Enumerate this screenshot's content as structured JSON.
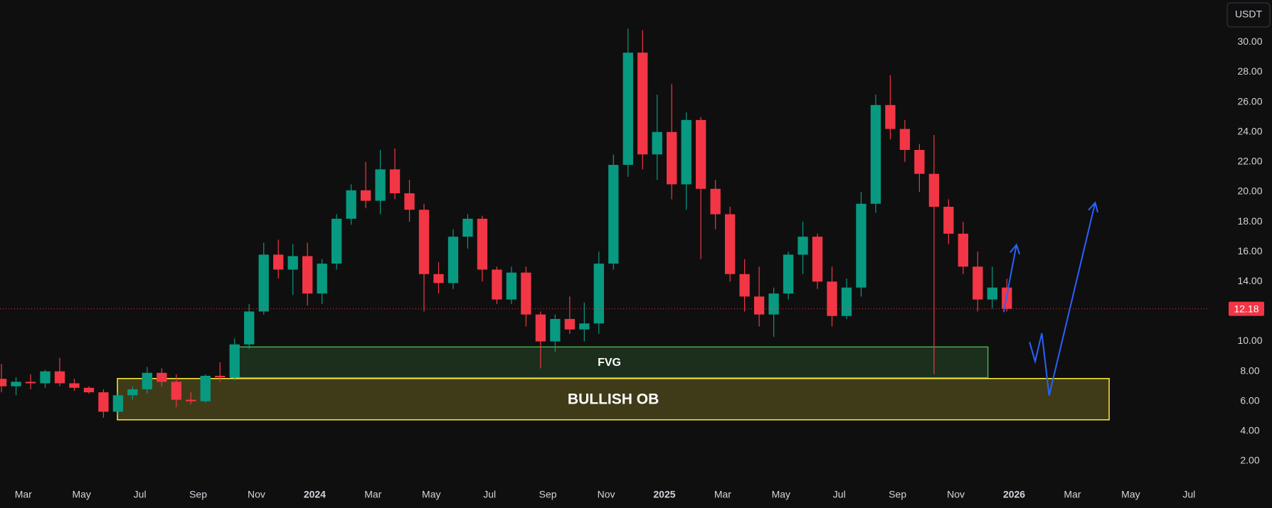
{
  "chart_data": {
    "type": "candlestick",
    "currency": "USDT",
    "up_color": "#089981",
    "down_color": "#f23645",
    "grid": false,
    "xlim": [
      1.2,
      42.7
    ],
    "ylim": [
      0.48,
      32.82
    ],
    "xticks": [
      {
        "value": 2,
        "label": "Mar"
      },
      {
        "value": 4,
        "label": "May"
      },
      {
        "value": 6,
        "label": "Jul"
      },
      {
        "value": 8,
        "label": "Sep"
      },
      {
        "value": 10,
        "label": "Nov"
      },
      {
        "value": 12,
        "label": "2024"
      },
      {
        "value": 14,
        "label": "Mar"
      },
      {
        "value": 16,
        "label": "May"
      },
      {
        "value": 18,
        "label": "Jul"
      },
      {
        "value": 20,
        "label": "Sep"
      },
      {
        "value": 22,
        "label": "Nov"
      },
      {
        "value": 24,
        "label": "2025"
      },
      {
        "value": 26,
        "label": "Mar"
      },
      {
        "value": 28,
        "label": "May"
      },
      {
        "value": 30,
        "label": "Jul"
      },
      {
        "value": 32,
        "label": "Sep"
      },
      {
        "value": 34,
        "label": "Nov"
      },
      {
        "value": 36,
        "label": "2026"
      },
      {
        "value": 38,
        "label": "Mar"
      },
      {
        "value": 40,
        "label": "May"
      },
      {
        "value": 42,
        "label": "Jul"
      }
    ],
    "yticks": [
      {
        "value": 2,
        "label": "2.00"
      },
      {
        "value": 4,
        "label": "4.00"
      },
      {
        "value": 6,
        "label": "6.00"
      },
      {
        "value": 8,
        "label": "8.00"
      },
      {
        "value": 10,
        "label": "10.00"
      },
      {
        "value": 12,
        "label": "12.00"
      },
      {
        "value": 14,
        "label": "14.00"
      },
      {
        "value": 16,
        "label": "16.00"
      },
      {
        "value": 18,
        "label": "18.00"
      },
      {
        "value": 20,
        "label": "20.00"
      },
      {
        "value": 22,
        "label": "22.00"
      },
      {
        "value": 24,
        "label": "24.00"
      },
      {
        "value": 26,
        "label": "26.00"
      },
      {
        "value": 28,
        "label": "28.00"
      },
      {
        "value": 30,
        "label": "30.00"
      }
    ],
    "x": [
      1.25,
      1.75,
      2.25,
      2.75,
      3.25,
      3.75,
      4.25,
      4.75,
      5.25,
      5.75,
      6.25,
      6.75,
      7.25,
      7.75,
      8.25,
      8.75,
      9.25,
      9.75,
      10.25,
      10.75,
      11.25,
      11.75,
      12.25,
      12.75,
      13.25,
      13.75,
      14.25,
      14.75,
      15.25,
      15.75,
      16.25,
      16.75,
      17.25,
      17.75,
      18.25,
      18.75,
      19.25,
      19.75,
      20.25,
      20.75,
      21.25,
      21.75,
      22.25,
      22.75,
      23.25,
      23.75,
      24.25,
      24.75,
      25.25,
      25.75,
      26.25,
      26.75,
      27.25,
      27.75,
      28.25,
      28.75,
      29.25,
      29.75,
      30.25,
      30.75,
      31.25,
      31.75,
      32.25,
      32.75,
      33.25,
      33.75,
      34.25,
      34.75,
      35.25,
      35.75
    ],
    "open": [
      7.5,
      7.0,
      7.3,
      7.2,
      8.0,
      7.2,
      6.9,
      6.6,
      5.3,
      6.4,
      6.8,
      7.9,
      7.3,
      6.1,
      6.0,
      7.7,
      7.6,
      9.8,
      12.0,
      15.8,
      14.8,
      15.7,
      13.2,
      15.2,
      18.2,
      20.1,
      19.4,
      21.5,
      19.9,
      18.8,
      14.5,
      13.9,
      17.0,
      18.2,
      14.8,
      12.8,
      14.6,
      11.8,
      10.0,
      11.5,
      10.8,
      11.2,
      15.2,
      21.8,
      29.3,
      22.5,
      24.0,
      20.5,
      24.8,
      20.2,
      18.5,
      14.5,
      13.0,
      11.8,
      13.2,
      15.8,
      17.0,
      14.0,
      11.7,
      13.6,
      19.2,
      25.8,
      24.2,
      22.8,
      21.2,
      19.0,
      17.2,
      15.0,
      12.8,
      13.6
    ],
    "high": [
      8.5,
      7.6,
      7.8,
      8.1,
      8.9,
      7.5,
      7.0,
      6.8,
      6.6,
      7.0,
      8.3,
      8.2,
      7.8,
      6.6,
      7.8,
      8.6,
      10.2,
      12.5,
      16.6,
      16.8,
      16.5,
      16.6,
      15.5,
      18.5,
      20.5,
      22.0,
      22.8,
      22.9,
      20.8,
      19.2,
      15.3,
      17.5,
      18.5,
      18.4,
      15.0,
      15.0,
      15.0,
      12.0,
      11.8,
      13.0,
      12.6,
      16.0,
      22.5,
      30.9,
      30.8,
      26.5,
      27.2,
      25.3,
      25.0,
      20.8,
      19.0,
      15.5,
      15.0,
      13.6,
      16.0,
      18.0,
      17.2,
      15.0,
      14.2,
      20.0,
      26.5,
      27.8,
      24.8,
      23.2,
      23.8,
      19.5,
      18.0,
      16.0,
      15.0,
      14.2
    ],
    "low": [
      6.6,
      6.4,
      6.8,
      6.9,
      7.0,
      6.7,
      6.5,
      4.9,
      5.1,
      6.1,
      6.5,
      7.0,
      5.6,
      5.8,
      5.9,
      7.3,
      7.4,
      9.5,
      11.8,
      14.2,
      13.1,
      12.4,
      12.5,
      14.8,
      17.8,
      18.9,
      18.5,
      19.5,
      18.0,
      12.0,
      13.2,
      13.5,
      16.2,
      14.0,
      12.5,
      12.5,
      11.0,
      8.2,
      9.3,
      10.5,
      10.0,
      10.5,
      14.8,
      21.0,
      21.5,
      20.8,
      19.5,
      18.8,
      15.5,
      17.5,
      14.0,
      12.0,
      11.0,
      10.3,
      12.8,
      14.5,
      13.5,
      11.0,
      11.5,
      13.0,
      18.6,
      23.5,
      22.0,
      20.0,
      7.8,
      16.5,
      14.5,
      12.0,
      12.2,
      12.0
    ],
    "close": [
      7.0,
      7.3,
      7.2,
      8.0,
      7.2,
      6.9,
      6.6,
      5.3,
      6.4,
      6.8,
      7.9,
      7.3,
      6.1,
      6.0,
      7.7,
      7.6,
      9.8,
      12.0,
      15.8,
      14.8,
      15.7,
      13.2,
      15.2,
      18.2,
      20.1,
      19.4,
      21.5,
      19.9,
      18.8,
      14.5,
      13.9,
      17.0,
      18.2,
      14.8,
      12.8,
      14.6,
      11.8,
      10.0,
      11.5,
      10.8,
      11.2,
      15.2,
      21.8,
      29.3,
      22.5,
      24.0,
      20.5,
      24.8,
      20.2,
      18.5,
      14.5,
      13.0,
      11.8,
      13.2,
      15.8,
      17.0,
      14.0,
      11.7,
      13.6,
      19.2,
      25.8,
      24.2,
      22.8,
      21.2,
      19.0,
      17.2,
      15.0,
      12.8,
      13.6,
      12.18
    ],
    "zones": [
      {
        "label": "FVG",
        "start": 9.12,
        "end": 35.1,
        "top": 9.63,
        "bottom": 7.57,
        "color": "#4caf50"
      },
      {
        "label": "BULLISH OB",
        "start": 5.23,
        "end": 39.26,
        "top": 7.52,
        "bottom": 4.76,
        "color": "#ffeb3b"
      }
    ],
    "projections": [
      {
        "color": "#2962ff",
        "x": [
          35.64,
          36.08
        ],
        "y": [
          11.96,
          16.46
        ]
      },
      {
        "color": "#2962ff",
        "x": [
          36.53,
          36.72,
          36.95,
          37.2,
          38.78
        ],
        "y": [
          9.96,
          8.66,
          10.55,
          6.38,
          19.27
        ]
      }
    ]
  }
}
